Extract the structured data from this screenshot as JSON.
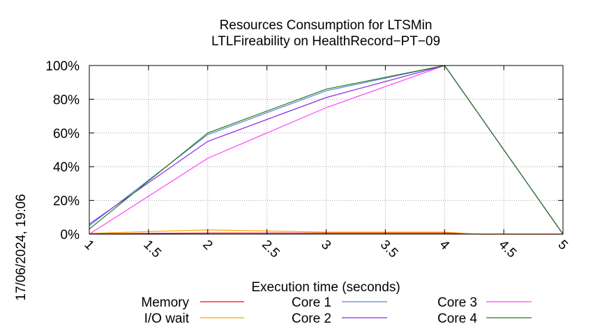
{
  "chart_data": {
    "type": "line",
    "title": "Resources Consumption for LTSMin",
    "subtitle": "LTLFireability on HealthRecord−PT−09",
    "xlabel": "Execution time (seconds)",
    "ylabel": "",
    "side_label": "17/06/2024, 19:06",
    "xlim": [
      1,
      5
    ],
    "ylim": [
      0,
      100
    ],
    "x_ticks": [
      1,
      1.5,
      2,
      2.5,
      3,
      3.5,
      4,
      4.5,
      5
    ],
    "x_tick_labels": [
      "1",
      "1.5",
      "2",
      "2.5",
      "3",
      "3.5",
      "4",
      "4.5",
      "5"
    ],
    "y_ticks": [
      0,
      20,
      40,
      60,
      80,
      100
    ],
    "y_tick_labels": [
      "0%",
      "20%",
      "40%",
      "60%",
      "80%",
      "100%"
    ],
    "grid": true,
    "legend_position": "bottom",
    "series": [
      {
        "name": "Memory",
        "color": "#ff0000",
        "x": [
          1,
          2,
          3,
          4,
          4.3,
          5
        ],
        "y": [
          0.2,
          0.6,
          0.6,
          0.6,
          0,
          0
        ]
      },
      {
        "name": "I/O wait",
        "color": "#ffa500",
        "x": [
          1,
          2,
          3,
          4,
          4.3,
          5
        ],
        "y": [
          0.5,
          2.5,
          1.2,
          1.2,
          0,
          0
        ]
      },
      {
        "name": "Core 1",
        "color": "#5b7fd8",
        "x": [
          1,
          2,
          3,
          4,
          5
        ],
        "y": [
          5,
          59,
          85,
          100,
          0
        ]
      },
      {
        "name": "Core 2",
        "color": "#8a2be2",
        "x": [
          1,
          2,
          3,
          4,
          5
        ],
        "y": [
          6,
          55,
          81,
          100,
          0
        ]
      },
      {
        "name": "Core 3",
        "color": "#ff40ff",
        "x": [
          1,
          2,
          3,
          4,
          5
        ],
        "y": [
          0,
          45,
          75,
          100,
          0
        ]
      },
      {
        "name": "Core 4",
        "color": "#1e7b1e",
        "x": [
          1,
          2,
          3,
          4,
          5
        ],
        "y": [
          3,
          60,
          86,
          100,
          0
        ]
      }
    ]
  }
}
